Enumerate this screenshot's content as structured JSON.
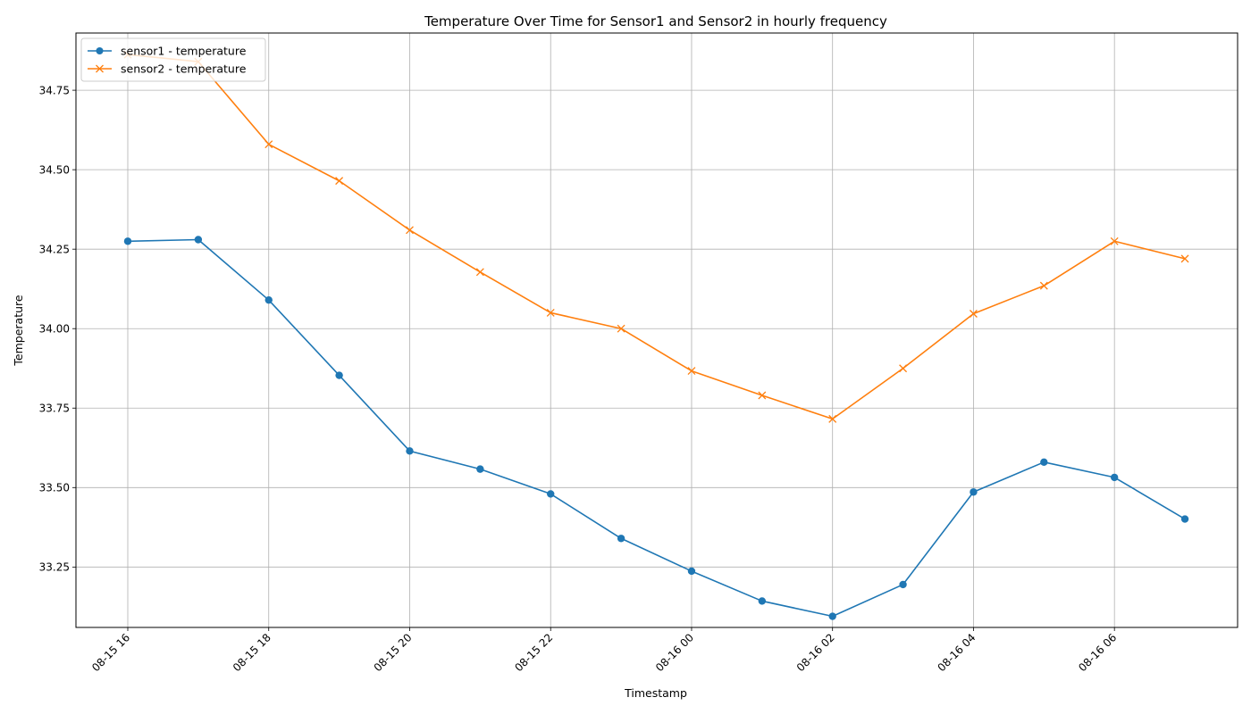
{
  "chart_data": {
    "type": "line",
    "title": "Temperature Over Time for Sensor1 and Sensor2 in hourly frequency",
    "xlabel": "Timestamp",
    "ylabel": "Temperature",
    "x": [
      "2023-08-15 16:00",
      "2023-08-15 17:00",
      "2023-08-15 18:00",
      "2023-08-15 19:00",
      "2023-08-15 20:00",
      "2023-08-15 21:00",
      "2023-08-15 22:00",
      "2023-08-15 23:00",
      "2023-08-16 00:00",
      "2023-08-16 01:00",
      "2023-08-16 02:00",
      "2023-08-16 03:00",
      "2023-08-16 04:00",
      "2023-08-16 05:00",
      "2023-08-16 06:00",
      "2023-08-16 07:00"
    ],
    "x_ticks": [
      "08-15 16",
      "08-15 18",
      "08-15 20",
      "08-15 22",
      "08-16 00",
      "08-16 02",
      "08-16 04",
      "08-16 06"
    ],
    "y_ticks": [
      "33.25",
      "33.50",
      "33.75",
      "34.00",
      "34.25",
      "34.50",
      "34.75"
    ],
    "ylim": [
      33.06,
      34.93
    ],
    "grid": true,
    "legend_position": "top-left",
    "series": [
      {
        "name": "sensor1 - temperature",
        "color": "#1f77b4",
        "marker": "circle",
        "values": [
          34.275,
          34.28,
          34.09,
          33.853,
          33.615,
          33.558,
          33.48,
          33.34,
          33.237,
          33.143,
          33.095,
          33.195,
          33.486,
          33.58,
          33.532,
          33.401
        ]
      },
      {
        "name": "sensor2 - temperature",
        "color": "#ff7f0e",
        "marker": "x",
        "values": [
          34.862,
          34.84,
          34.58,
          34.465,
          34.31,
          34.178,
          34.05,
          34.0,
          33.867,
          33.79,
          33.716,
          33.875,
          34.047,
          34.135,
          34.275,
          34.22
        ]
      }
    ]
  }
}
